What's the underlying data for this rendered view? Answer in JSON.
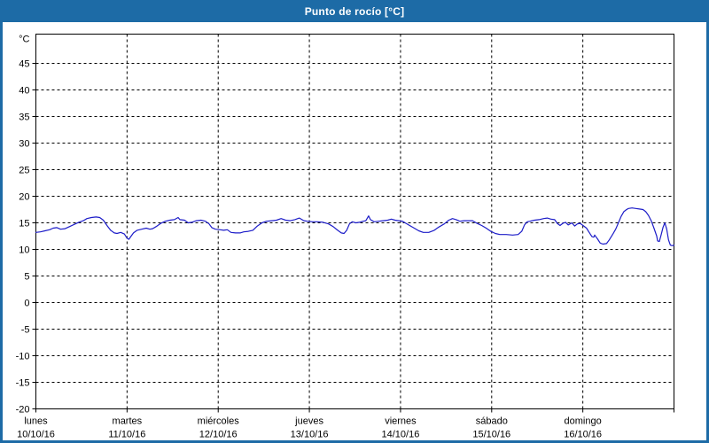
{
  "window": {
    "title": "Punto de rocío [°C]"
  },
  "colors": {
    "titlebar_bg": "#1d6ba6",
    "title_text": "#ffffff",
    "window_border": "#1d6ba6",
    "plot_bg": "#ffffff",
    "grid": "#000000",
    "axis": "#000000",
    "line": "#1c1cc8",
    "label_text": "#000000"
  },
  "chart_data": {
    "type": "line",
    "title": "Punto de rocío [°C]",
    "ylabel": "°C",
    "ylim": [
      -20,
      50.5
    ],
    "y_ticks": [
      45,
      40,
      35,
      30,
      25,
      20,
      15,
      10,
      5,
      0,
      -5,
      -10,
      -15,
      -20
    ],
    "grid": "dashed",
    "legend_position": "none",
    "x_range_days": [
      0,
      7
    ],
    "x_days": [
      {
        "label": "lunes",
        "date": "10/10/16"
      },
      {
        "label": "martes",
        "date": "11/10/16"
      },
      {
        "label": "miércoles",
        "date": "12/10/16"
      },
      {
        "label": "jueves",
        "date": "13/10/16"
      },
      {
        "label": "viernes",
        "date": "14/10/16"
      },
      {
        "label": "sábado",
        "date": "15/10/16"
      },
      {
        "label": "domingo",
        "date": "16/10/16"
      }
    ],
    "series": [
      {
        "name": "Punto de rocío",
        "unit": "°C",
        "color": "#1c1cc8",
        "points": [
          [
            0.0,
            13.2
          ],
          [
            0.05,
            13.3
          ],
          [
            0.1,
            13.5
          ],
          [
            0.15,
            13.7
          ],
          [
            0.19,
            14.0
          ],
          [
            0.23,
            14.1
          ],
          [
            0.27,
            13.8
          ],
          [
            0.32,
            13.9
          ],
          [
            0.37,
            14.3
          ],
          [
            0.42,
            14.7
          ],
          [
            0.47,
            15.1
          ],
          [
            0.52,
            15.4
          ],
          [
            0.56,
            15.8
          ],
          [
            0.61,
            16.0
          ],
          [
            0.66,
            16.1
          ],
          [
            0.7,
            16.0
          ],
          [
            0.74,
            15.5
          ],
          [
            0.78,
            14.5
          ],
          [
            0.82,
            13.6
          ],
          [
            0.86,
            13.1
          ],
          [
            0.89,
            13.0
          ],
          [
            0.93,
            13.2
          ],
          [
            0.97,
            12.9
          ],
          [
            1.0,
            12.1
          ],
          [
            1.02,
            11.9
          ],
          [
            1.04,
            12.4
          ],
          [
            1.07,
            13.1
          ],
          [
            1.11,
            13.6
          ],
          [
            1.16,
            13.8
          ],
          [
            1.21,
            14.0
          ],
          [
            1.25,
            13.8
          ],
          [
            1.28,
            13.9
          ],
          [
            1.32,
            14.3
          ],
          [
            1.37,
            14.9
          ],
          [
            1.42,
            15.3
          ],
          [
            1.47,
            15.5
          ],
          [
            1.52,
            15.6
          ],
          [
            1.56,
            16.0
          ],
          [
            1.58,
            15.6
          ],
          [
            1.63,
            15.5
          ],
          [
            1.67,
            15.0
          ],
          [
            1.71,
            15.1
          ],
          [
            1.76,
            15.4
          ],
          [
            1.81,
            15.5
          ],
          [
            1.86,
            15.3
          ],
          [
            1.9,
            14.8
          ],
          [
            1.93,
            14.1
          ],
          [
            1.97,
            13.8
          ],
          [
            2.02,
            13.7
          ],
          [
            2.06,
            13.6
          ],
          [
            2.1,
            13.7
          ],
          [
            2.14,
            13.2
          ],
          [
            2.19,
            13.1
          ],
          [
            2.24,
            13.1
          ],
          [
            2.28,
            13.3
          ],
          [
            2.33,
            13.4
          ],
          [
            2.38,
            13.6
          ],
          [
            2.43,
            14.4
          ],
          [
            2.48,
            15.0
          ],
          [
            2.53,
            15.3
          ],
          [
            2.59,
            15.4
          ],
          [
            2.64,
            15.5
          ],
          [
            2.69,
            15.8
          ],
          [
            2.74,
            15.5
          ],
          [
            2.79,
            15.4
          ],
          [
            2.84,
            15.6
          ],
          [
            2.89,
            15.9
          ],
          [
            2.94,
            15.4
          ],
          [
            2.98,
            15.3
          ],
          [
            3.03,
            15.2
          ],
          [
            3.09,
            15.2
          ],
          [
            3.15,
            15.1
          ],
          [
            3.21,
            14.8
          ],
          [
            3.26,
            14.3
          ],
          [
            3.31,
            13.6
          ],
          [
            3.35,
            13.1
          ],
          [
            3.38,
            13.0
          ],
          [
            3.41,
            13.6
          ],
          [
            3.44,
            14.8
          ],
          [
            3.47,
            15.2
          ],
          [
            3.51,
            15.0
          ],
          [
            3.55,
            15.1
          ],
          [
            3.59,
            15.3
          ],
          [
            3.62,
            15.4
          ],
          [
            3.65,
            16.3
          ],
          [
            3.67,
            15.6
          ],
          [
            3.71,
            15.2
          ],
          [
            3.76,
            15.3
          ],
          [
            3.81,
            15.4
          ],
          [
            3.86,
            15.5
          ],
          [
            3.9,
            15.7
          ],
          [
            3.94,
            15.5
          ],
          [
            3.98,
            15.4
          ],
          [
            4.02,
            15.3
          ],
          [
            4.05,
            15.0
          ],
          [
            4.1,
            14.5
          ],
          [
            4.15,
            14.0
          ],
          [
            4.2,
            13.5
          ],
          [
            4.25,
            13.2
          ],
          [
            4.31,
            13.2
          ],
          [
            4.37,
            13.6
          ],
          [
            4.42,
            14.2
          ],
          [
            4.48,
            14.8
          ],
          [
            4.53,
            15.5
          ],
          [
            4.57,
            15.8
          ],
          [
            4.61,
            15.6
          ],
          [
            4.65,
            15.3
          ],
          [
            4.7,
            15.4
          ],
          [
            4.74,
            15.4
          ],
          [
            4.79,
            15.4
          ],
          [
            4.84,
            14.9
          ],
          [
            4.89,
            14.5
          ],
          [
            4.94,
            14.0
          ],
          [
            4.99,
            13.4
          ],
          [
            5.04,
            13.0
          ],
          [
            5.09,
            12.8
          ],
          [
            5.16,
            12.8
          ],
          [
            5.23,
            12.7
          ],
          [
            5.29,
            12.8
          ],
          [
            5.33,
            13.4
          ],
          [
            5.36,
            14.6
          ],
          [
            5.39,
            15.2
          ],
          [
            5.42,
            15.3
          ],
          [
            5.47,
            15.5
          ],
          [
            5.52,
            15.6
          ],
          [
            5.57,
            15.8
          ],
          [
            5.61,
            15.9
          ],
          [
            5.65,
            15.7
          ],
          [
            5.69,
            15.6
          ],
          [
            5.72,
            14.9
          ],
          [
            5.75,
            14.5
          ],
          [
            5.78,
            14.9
          ],
          [
            5.81,
            15.1
          ],
          [
            5.84,
            14.6
          ],
          [
            5.88,
            15.0
          ],
          [
            5.91,
            14.4
          ],
          [
            5.94,
            14.8
          ],
          [
            5.97,
            14.9
          ],
          [
            6.01,
            14.4
          ],
          [
            6.04,
            14.0
          ],
          [
            6.07,
            13.2
          ],
          [
            6.1,
            12.4
          ],
          [
            6.12,
            12.3
          ],
          [
            6.13,
            12.7
          ],
          [
            6.16,
            12.0
          ],
          [
            6.19,
            11.2
          ],
          [
            6.22,
            11.0
          ],
          [
            6.26,
            11.1
          ],
          [
            6.29,
            11.8
          ],
          [
            6.33,
            12.9
          ],
          [
            6.36,
            13.8
          ],
          [
            6.39,
            15.0
          ],
          [
            6.42,
            16.2
          ],
          [
            6.45,
            17.1
          ],
          [
            6.48,
            17.5
          ],
          [
            6.5,
            17.7
          ],
          [
            6.54,
            17.8
          ],
          [
            6.58,
            17.7
          ],
          [
            6.62,
            17.6
          ],
          [
            6.66,
            17.5
          ],
          [
            6.69,
            17.1
          ],
          [
            6.72,
            16.4
          ],
          [
            6.75,
            15.4
          ],
          [
            6.78,
            14.0
          ],
          [
            6.81,
            12.5
          ],
          [
            6.82,
            11.6
          ],
          [
            6.84,
            11.5
          ],
          [
            6.86,
            12.8
          ],
          [
            6.88,
            14.2
          ],
          [
            6.9,
            15.0
          ],
          [
            6.92,
            13.8
          ],
          [
            6.94,
            11.8
          ],
          [
            6.96,
            10.8
          ],
          [
            6.98,
            10.7
          ],
          [
            7.0,
            10.8
          ]
        ]
      }
    ]
  }
}
